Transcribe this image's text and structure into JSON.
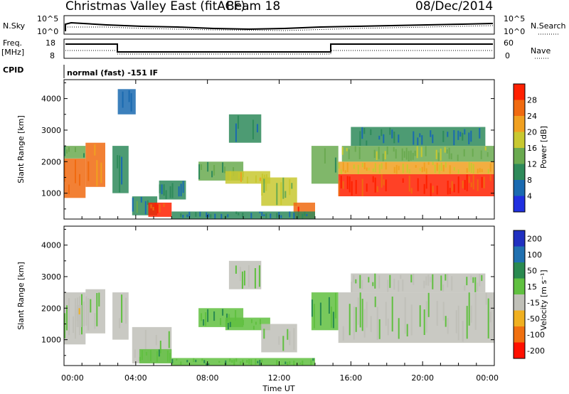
{
  "header": {
    "station": "Christmas Valley East (fitACF)",
    "beam": "Beam 18",
    "date": "08/Dec/2014"
  },
  "panels": {
    "nsky_label": "N.Sky",
    "nsky_ticks": [
      "10^5",
      "10^0"
    ],
    "nsearch_label": "N.Search",
    "nsearch_ticks": [
      "10^5",
      "10^0"
    ],
    "freq_label": "Freq.",
    "freq_unit": "[MHz]",
    "freq_ticks": [
      "18",
      "8"
    ],
    "nave_label": "Nave",
    "nave_ticks": [
      "60",
      "0"
    ],
    "cpid_label": "CPID",
    "cpid_text": "normal (fast) -151 IF"
  },
  "colors": {
    "power_scale": [
      "#2030e0",
      "#1a6ab0",
      "#2e8a5a",
      "#6aaa50",
      "#c8c830",
      "#f0a020",
      "#f06a10",
      "#ff2000"
    ],
    "velocity_scale": [
      "#2030c0",
      "#2070b0",
      "#2a8a50",
      "#60c040",
      "#c0c0b8",
      "#f0b020",
      "#f07010",
      "#ff1000"
    ]
  },
  "chart_data": [
    {
      "type": "heatmap",
      "name": "power",
      "xlabel": "Time UT",
      "ylabel": "Slant Range [km]",
      "xlim": [
        0,
        24
      ],
      "ylim": [
        180,
        4600
      ],
      "x_ticks": [
        "00:00",
        "04:00",
        "08:00",
        "12:00",
        "16:00",
        "20:00",
        "00:00"
      ],
      "y_ticks": [
        1000,
        2000,
        3000,
        4000
      ],
      "colorbar_label": "Power [dB]",
      "colorbar_ticks": [
        "4",
        "8",
        "12",
        "16",
        "20",
        "24",
        "28"
      ],
      "colorbar_range": [
        0,
        32
      ],
      "regions": [
        {
          "t0": 0.0,
          "t1": 1.2,
          "r0": 850,
          "r1": 2100,
          "v": 26
        },
        {
          "t0": 0.0,
          "t1": 1.2,
          "r0": 2100,
          "r1": 2500,
          "v": 12
        },
        {
          "t0": 1.2,
          "t1": 2.3,
          "r0": 1200,
          "r1": 2600,
          "v": 24
        },
        {
          "t0": 2.7,
          "t1": 3.6,
          "r0": 1000,
          "r1": 2500,
          "v": 8
        },
        {
          "t0": 3.0,
          "t1": 4.0,
          "r0": 3500,
          "r1": 4300,
          "v": 5
        },
        {
          "t0": 3.8,
          "t1": 5.2,
          "r0": 300,
          "r1": 900,
          "v": 10
        },
        {
          "t0": 4.7,
          "t1": 6.0,
          "r0": 250,
          "r1": 700,
          "v": 28
        },
        {
          "t0": 5.3,
          "t1": 6.8,
          "r0": 800,
          "r1": 1400,
          "v": 8
        },
        {
          "t0": 7.5,
          "t1": 10.0,
          "r0": 1400,
          "r1": 2000,
          "v": 12
        },
        {
          "t0": 9.0,
          "t1": 11.5,
          "r0": 1300,
          "r1": 1700,
          "v": 18
        },
        {
          "t0": 9.2,
          "t1": 11.0,
          "r0": 2600,
          "r1": 3500,
          "v": 8
        },
        {
          "t0": 11.0,
          "t1": 13.0,
          "r0": 600,
          "r1": 1500,
          "v": 16
        },
        {
          "t0": 12.8,
          "t1": 14.0,
          "r0": 200,
          "r1": 700,
          "v": 26
        },
        {
          "t0": 6.0,
          "t1": 14.0,
          "r0": 180,
          "r1": 420,
          "v": 8
        },
        {
          "t0": 13.8,
          "t1": 15.3,
          "r0": 1300,
          "r1": 2500,
          "v": 14
        },
        {
          "t0": 15.3,
          "t1": 24.0,
          "r0": 900,
          "r1": 1600,
          "v": 28
        },
        {
          "t0": 15.3,
          "t1": 24.0,
          "r0": 1600,
          "r1": 2000,
          "v": 20
        },
        {
          "t0": 15.5,
          "t1": 24.0,
          "r0": 2000,
          "r1": 2500,
          "v": 15
        },
        {
          "t0": 16.0,
          "t1": 23.5,
          "r0": 2500,
          "r1": 3100,
          "v": 8
        }
      ]
    },
    {
      "type": "heatmap",
      "name": "velocity",
      "xlabel": "Time UT",
      "ylabel": "Slant Range [km]",
      "xlim": [
        0,
        24
      ],
      "ylim": [
        180,
        4600
      ],
      "x_ticks": [
        "00:00",
        "04:00",
        "08:00",
        "12:00",
        "16:00",
        "20:00",
        "00:00"
      ],
      "y_ticks": [
        1000,
        2000,
        3000,
        4000
      ],
      "colorbar_label": "Velocity [m s⁻¹]",
      "colorbar_ticks": [
        "200",
        "100",
        "50",
        "15",
        "-15",
        "-50",
        "-100",
        "-200"
      ],
      "colorbar_range": [
        -250,
        250
      ],
      "regions": [
        {
          "t0": 0.0,
          "t1": 1.2,
          "r0": 850,
          "r1": 2500,
          "v": 0
        },
        {
          "t0": 0.7,
          "t1": 1.0,
          "r0": 1400,
          "r1": 2100,
          "v": -60
        },
        {
          "t0": 1.2,
          "t1": 2.3,
          "r0": 1200,
          "r1": 2600,
          "v": 0
        },
        {
          "t0": 2.7,
          "t1": 3.6,
          "r0": 1000,
          "r1": 2500,
          "v": 0
        },
        {
          "t0": 3.8,
          "t1": 6.0,
          "r0": 250,
          "r1": 1400,
          "v": 0
        },
        {
          "t0": 4.2,
          "t1": 6.0,
          "r0": 250,
          "r1": 700,
          "v": 40
        },
        {
          "t0": 6.0,
          "t1": 14.0,
          "r0": 180,
          "r1": 420,
          "v": 60
        },
        {
          "t0": 7.5,
          "t1": 10.0,
          "r0": 1400,
          "r1": 2000,
          "v": 60
        },
        {
          "t0": 9.0,
          "t1": 11.5,
          "r0": 1300,
          "r1": 1700,
          "v": 60
        },
        {
          "t0": 9.2,
          "t1": 11.0,
          "r0": 2600,
          "r1": 3500,
          "v": 0
        },
        {
          "t0": 11.0,
          "t1": 13.0,
          "r0": 600,
          "r1": 1500,
          "v": 0
        },
        {
          "t0": 13.8,
          "t1": 15.3,
          "r0": 1300,
          "r1": 2500,
          "v": 60
        },
        {
          "t0": 15.3,
          "t1": 24.0,
          "r0": 900,
          "r1": 2500,
          "v": 0
        },
        {
          "t0": 16.0,
          "t1": 23.5,
          "r0": 2500,
          "r1": 3100,
          "v": 0
        }
      ]
    }
  ]
}
